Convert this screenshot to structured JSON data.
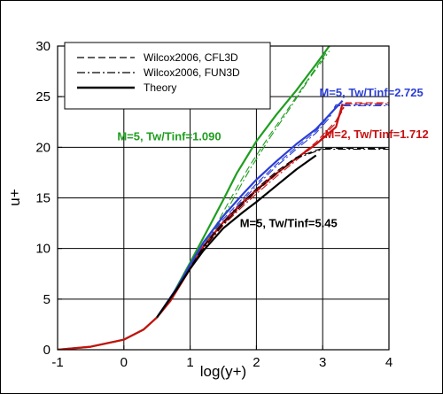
{
  "chart_data": {
    "type": "line",
    "xlabel": "log(y+)",
    "ylabel": "u+",
    "xlim": [
      -1,
      4
    ],
    "ylim": [
      0,
      30
    ],
    "x_ticks": [
      -1,
      0,
      1,
      2,
      3,
      4
    ],
    "y_ticks": [
      0,
      5,
      10,
      15,
      20,
      25,
      30
    ],
    "grid": true,
    "legend": {
      "placement": "top-left",
      "entries": [
        {
          "label": "Wilcox2006, CFL3D",
          "dash": "dashed",
          "color": "#000000"
        },
        {
          "label": "Wilcox2006, FUN3D",
          "dash": "dashdot",
          "color": "#000000"
        },
        {
          "label": "Theory",
          "dash": "solid",
          "color": "#000000"
        }
      ]
    },
    "annotations": [
      {
        "text": "M=5, Tw/Tinf=1.090",
        "color": "#1f9e1f",
        "x": -0.1,
        "y": 20.7
      },
      {
        "text": "M=5, Tw/Tinf=2.725",
        "color": "#2b3fd6",
        "x": 2.95,
        "y": 25.0
      },
      {
        "text": "M=2, Tw/Tinf=1.712",
        "color": "#c81010",
        "x": 3.03,
        "y": 20.9
      },
      {
        "text": "M=5, Tw/Tinf=5.45",
        "color": "#000000",
        "x": 1.75,
        "y": 12.1
      }
    ],
    "series": [
      {
        "case": "M=5, Tw/Tinf=1.090",
        "source": "theory",
        "color": "#1f9e1f",
        "dash": "solid",
        "x": [
          -1,
          -0.5,
          0,
          0.3,
          0.5,
          0.7,
          1.0,
          1.3,
          1.5,
          1.7,
          2.0,
          2.3,
          2.6,
          2.9,
          3.1
        ],
        "y": [
          0,
          0.3,
          1.0,
          2.0,
          3.2,
          5.0,
          8.6,
          12.3,
          14.8,
          17.4,
          20.6,
          23.2,
          25.6,
          28.2,
          30.0
        ]
      },
      {
        "case": "M=5, Tw/Tinf=1.090",
        "source": "cfl3d",
        "color": "#1f9e1f",
        "dash": "dashed",
        "x": [
          0.5,
          0.8,
          1.0,
          1.2,
          1.4,
          1.6,
          1.9,
          2.2,
          2.5,
          2.8,
          3.05
        ],
        "y": [
          3.2,
          6.2,
          8.4,
          10.6,
          12.4,
          14.8,
          18.2,
          21.2,
          24.0,
          26.9,
          29.3
        ]
      },
      {
        "case": "M=5, Tw/Tinf=1.090",
        "source": "fun3d",
        "color": "#1f9e1f",
        "dash": "dashdot",
        "x": [
          0.5,
          0.8,
          1.0,
          1.2,
          1.4,
          1.6,
          1.9,
          2.2,
          2.5,
          2.8,
          3.1
        ],
        "y": [
          3.2,
          6.1,
          8.3,
          10.4,
          12.1,
          14.3,
          17.8,
          20.9,
          23.8,
          26.8,
          29.5
        ]
      },
      {
        "case": "M=5, Tw/Tinf=2.725",
        "source": "theory",
        "color": "#2b3fd6",
        "dash": "solid",
        "x": [
          0.5,
          0.8,
          1.0,
          1.2,
          1.5,
          1.8,
          2.0,
          2.3,
          2.6,
          2.9,
          3.1,
          3.3
        ],
        "y": [
          3.2,
          6.1,
          8.4,
          10.6,
          13.2,
          15.4,
          16.8,
          18.6,
          20.3,
          21.8,
          23.2,
          24.6
        ]
      },
      {
        "case": "M=5, Tw/Tinf=2.725",
        "source": "cfl3d",
        "color": "#2b3fd6",
        "dash": "dashed",
        "x": [
          0.5,
          0.8,
          1.0,
          1.2,
          1.5,
          1.8,
          2.0,
          2.3,
          2.6,
          2.9,
          3.1,
          3.2,
          4.0
        ],
        "y": [
          3.2,
          6.0,
          8.2,
          10.3,
          12.9,
          15.0,
          16.4,
          18.3,
          20.0,
          21.6,
          23.1,
          24.2,
          24.2
        ]
      },
      {
        "case": "M=5, Tw/Tinf=2.725",
        "source": "fun3d",
        "color": "#2b3fd6",
        "dash": "dashdot",
        "x": [
          0.5,
          0.8,
          1.0,
          1.2,
          1.5,
          1.8,
          2.0,
          2.3,
          2.6,
          2.9,
          3.1,
          3.2,
          4.0
        ],
        "y": [
          3.2,
          6.0,
          8.1,
          10.2,
          12.7,
          14.8,
          16.2,
          18.1,
          19.8,
          21.4,
          22.9,
          24.1,
          24.1
        ]
      },
      {
        "case": "M=2, Tw/Tinf=1.712",
        "source": "theory",
        "color": "#c81010",
        "dash": "solid",
        "x": [
          -1,
          -0.5,
          0,
          0.3,
          0.5,
          0.7,
          1.0,
          1.2,
          1.5,
          1.8,
          2.0,
          2.3,
          2.6,
          2.9,
          3.2,
          3.3
        ],
        "y": [
          0,
          0.3,
          1.0,
          2.0,
          3.2,
          4.8,
          8.0,
          10.2,
          12.6,
          14.6,
          15.8,
          17.4,
          18.9,
          20.3,
          22.0,
          24.3
        ]
      },
      {
        "case": "M=2, Tw/Tinf=1.712",
        "source": "cfl3d",
        "color": "#c81010",
        "dash": "dashed",
        "x": [
          0.5,
          0.8,
          1.0,
          1.2,
          1.5,
          1.8,
          2.0,
          2.3,
          2.6,
          2.9,
          3.2,
          3.35,
          4.0
        ],
        "y": [
          3.2,
          5.9,
          8.0,
          10.1,
          12.4,
          14.4,
          15.6,
          17.3,
          18.9,
          20.5,
          22.6,
          24.4,
          24.4
        ]
      },
      {
        "case": "M=2, Tw/Tinf=1.712",
        "source": "fun3d",
        "color": "#c81010",
        "dash": "dashdot",
        "x": [
          0.5,
          0.8,
          1.0,
          1.2,
          1.5,
          1.8,
          2.0,
          2.3,
          2.6,
          2.9,
          3.2,
          3.35,
          4.0
        ],
        "y": [
          3.2,
          5.9,
          7.9,
          10.0,
          12.3,
          14.2,
          15.4,
          17.1,
          18.7,
          20.3,
          22.4,
          24.3,
          24.3
        ]
      },
      {
        "case": "M=5, Tw/Tinf=5.45",
        "source": "theory",
        "color": "#000000",
        "dash": "solid",
        "x": [
          0.5,
          0.8,
          1.0,
          1.2,
          1.5,
          1.8,
          2.0,
          2.3,
          2.6,
          2.9
        ],
        "y": [
          3.2,
          6.0,
          8.0,
          9.8,
          12.0,
          13.6,
          14.6,
          16.2,
          17.8,
          19.2
        ]
      },
      {
        "case": "M=5, Tw/Tinf=5.45",
        "source": "cfl3d",
        "color": "#000000",
        "dash": "dashed",
        "x": [
          0.5,
          0.8,
          1.0,
          1.2,
          1.5,
          1.8,
          2.0,
          2.3,
          2.6,
          2.9,
          3.0,
          4.0
        ],
        "y": [
          3.2,
          6.0,
          8.1,
          10.2,
          12.6,
          14.6,
          15.9,
          17.6,
          19.0,
          19.7,
          19.9,
          19.9
        ]
      },
      {
        "case": "M=5, Tw/Tinf=5.45",
        "source": "fun3d",
        "color": "#000000",
        "dash": "dashdot",
        "x": [
          0.5,
          0.8,
          1.0,
          1.2,
          1.5,
          1.8,
          2.0,
          2.3,
          2.6,
          2.9,
          3.0,
          4.0
        ],
        "y": [
          3.2,
          5.9,
          8.0,
          10.0,
          12.4,
          14.4,
          15.7,
          17.4,
          18.9,
          19.6,
          19.8,
          19.8
        ]
      }
    ]
  }
}
